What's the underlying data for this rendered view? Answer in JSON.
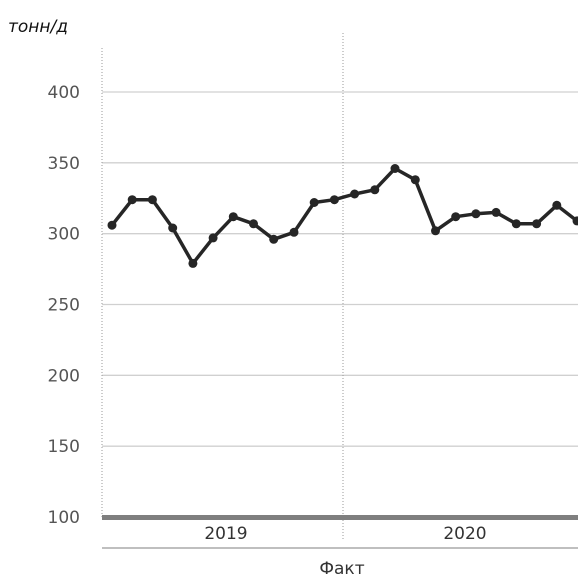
{
  "chart_data": {
    "type": "line",
    "title": "",
    "ylabel": "тонн/д",
    "xlabel": "Факт",
    "ylim": [
      100,
      420
    ],
    "yticks": [
      "100",
      "150",
      "200",
      "250",
      "300",
      "350",
      "400"
    ],
    "year_labels": [
      "2019",
      "2020"
    ],
    "grid": true,
    "legend": "none",
    "series": [
      {
        "values": [
          306,
          324,
          324,
          304,
          279,
          297,
          312,
          307,
          296,
          301,
          322,
          324,
          328,
          331,
          346,
          338,
          302,
          312,
          314,
          315,
          307,
          307,
          320,
          309
        ]
      }
    ],
    "colors": {
      "line": "#262626",
      "grid": "#d0d0d0",
      "base": "#7f7f7f"
    }
  }
}
